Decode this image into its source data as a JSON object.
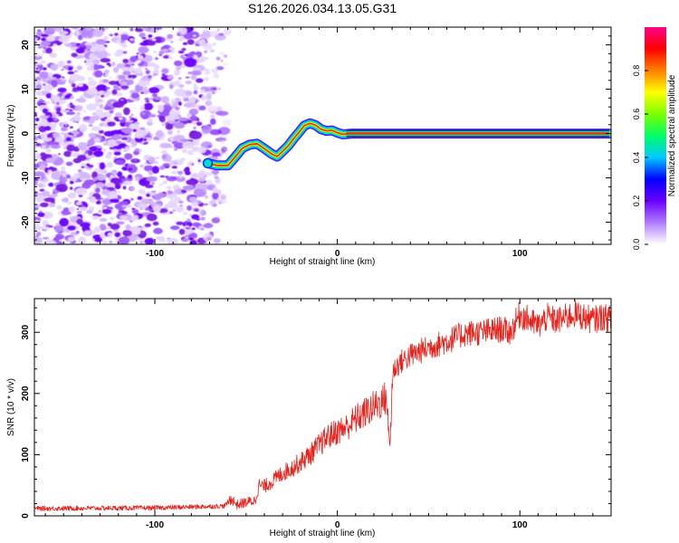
{
  "title": "S126.2026.034.13.05.G31",
  "chart_data": [
    {
      "type": "heatmap",
      "title": "S126.2026.034.13.05.G31",
      "xlabel": "Height of straight line (km)",
      "ylabel": "Frequency (Hz)",
      "xlim": [
        -166,
        150
      ],
      "ylim": [
        -25,
        24
      ],
      "xticks": [
        -100,
        0,
        100
      ],
      "xtick_labels": [
        "-100",
        "0",
        "100"
      ],
      "yticks": [
        -20,
        -10,
        0,
        10,
        20
      ],
      "ytick_labels": [
        "-20",
        "-10",
        "0",
        "10",
        "20"
      ],
      "noise_region_x": [
        -166,
        -60
      ],
      "noise_alpha_fade_x": [
        -75,
        -58
      ],
      "ridge": {
        "x": [
          -71,
          -66,
          -60,
          -56,
          -52,
          -48,
          -44,
          -40,
          -36,
          -33,
          -30,
          -27,
          -24,
          -21,
          -18,
          -15,
          -12,
          -9,
          -6,
          -3,
          0,
          3,
          8,
          15,
          40,
          80,
          120,
          149
        ],
        "freq": [
          -6.7,
          -7.2,
          -7.2,
          -5.3,
          -3.3,
          -2.5,
          -2.3,
          -3.4,
          -4.6,
          -5.2,
          -4.0,
          -2.8,
          -1.2,
          0.3,
          1.8,
          2.3,
          1.9,
          1.0,
          0.6,
          0.7,
          0.2,
          -0.2,
          0.0,
          0.0,
          0.0,
          0.0,
          0.0,
          0.0
        ]
      },
      "flat_line": {
        "x_start": 5,
        "x_end": 149,
        "freq": 0.0
      },
      "colorbar": {
        "label": "Normalized spectral amplitude",
        "range": [
          0,
          1
        ],
        "ticks": [
          0.0,
          0.2,
          0.4,
          0.6,
          0.8
        ],
        "tick_labels": [
          "0.0",
          "0.2",
          "0.4",
          "0.6",
          "0.8"
        ],
        "colors": [
          "#ffffff",
          "#b07cff",
          "#6a00ff",
          "#0000ff",
          "#00c8ff",
          "#00ff66",
          "#7cff00",
          "#ffff00",
          "#ff8000",
          "#ff0000",
          "#ff0088"
        ]
      },
      "noise_color": "#7a1fe0",
      "ridge_core_color": "#ff2a00"
    },
    {
      "type": "line",
      "xlabel": "Height of straight line (km)",
      "ylabel": "SNR (10 * v/v)",
      "xlim": [
        -166,
        150
      ],
      "ylim": [
        0,
        355
      ],
      "xticks": [
        -100,
        0,
        100
      ],
      "xtick_labels": [
        "-100",
        "0",
        "100"
      ],
      "yticks": [
        0,
        100,
        200,
        300
      ],
      "ytick_labels": [
        "0",
        "100",
        "200",
        "300"
      ],
      "series": [
        {
          "name": "SNR",
          "color": "#e8221c",
          "x": [
            -166,
            -100,
            -62,
            -58,
            -55,
            -50,
            -45,
            -43,
            -40,
            -35,
            -30,
            -25,
            -20,
            -15,
            -10,
            -5,
            0,
            5,
            10,
            15,
            20,
            25,
            27,
            28,
            29,
            30,
            31,
            35,
            40,
            50,
            60,
            70,
            80,
            90,
            95,
            100,
            105,
            110,
            115,
            120,
            130,
            140,
            145,
            150
          ],
          "y": [
            12,
            13,
            16,
            28,
            18,
            22,
            25,
            50,
            48,
            58,
            70,
            78,
            88,
            100,
            115,
            130,
            138,
            145,
            158,
            168,
            178,
            188,
            195,
            135,
            120,
            215,
            240,
            252,
            262,
            275,
            285,
            298,
            300,
            305,
            300,
            330,
            320,
            310,
            325,
            318,
            330,
            320,
            325,
            322
          ]
        }
      ]
    }
  ]
}
